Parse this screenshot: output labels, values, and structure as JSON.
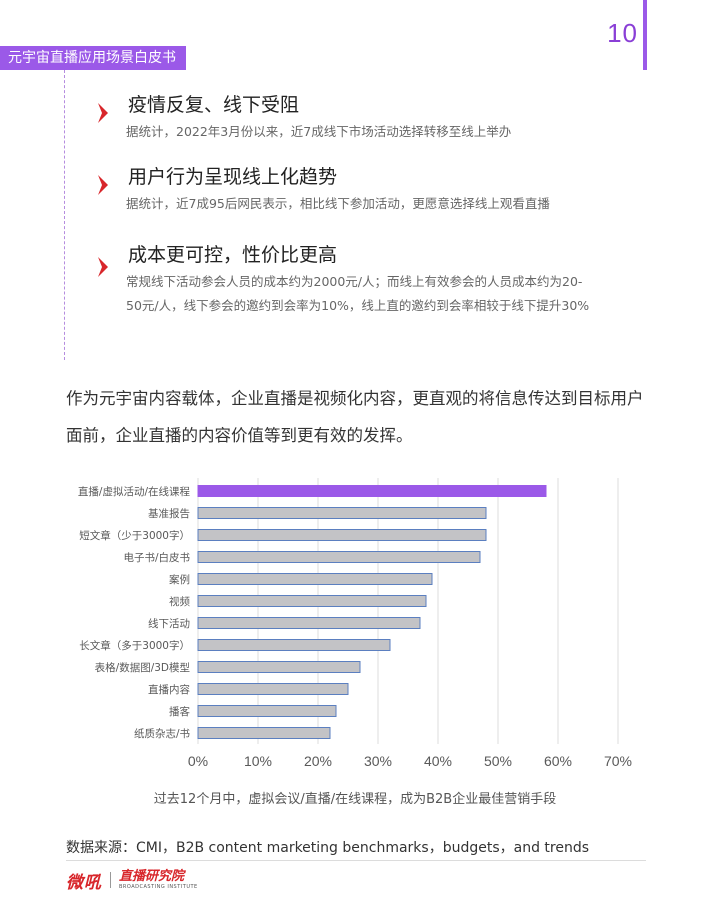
{
  "page_number": "10",
  "doc_title": "元宇宙直播应用场景白皮书",
  "points": [
    {
      "title": "疫情反复、线下受阻",
      "body": "据统计，2022年3月份以来，近7成线下市场活动选择转移至线上举办"
    },
    {
      "title": "用户行为呈现线上化趋势",
      "body": "据统计，近7成95后网民表示，相比线下参加活动，更愿意选择线上观看直播"
    },
    {
      "title": "成本更可控，性价比更高",
      "body": "常规线下活动参会人员的成本约为2000元/人；而线上有效参会的人员成本约为20-50元/人，线下参会的邀约到会率为10%，线上直的邀约到会率相较于线下提升30%"
    }
  ],
  "paragraph": "作为元宇宙内容载体，企业直播是视频化内容，更直观的将信息传达到目标用户面前，企业直播的内容价值等到更有效的发挥。",
  "chart_caption": "过去12个月中，虚拟会议/直播/在线课程，成为B2B企业最佳营销手段",
  "source": "数据来源：CMI，B2B content marketing benchmarks，budgets，and trends",
  "logo": {
    "brand": "微吼",
    "sub": "直播研究院",
    "sub_en": "BROADCASTING INSTITUTE"
  },
  "colors": {
    "accent": "#9b59e8",
    "bar": "#c3c3c6",
    "bar_border": "#5b7fc0",
    "highlight": "#9b59e8",
    "chevron": "#d8262b"
  },
  "chart_data": {
    "type": "bar",
    "orientation": "horizontal",
    "categories": [
      "直播/虚拟活动/在线课程",
      "基准报告",
      "短文章（少于3000字）",
      "电子书/白皮书",
      "案例",
      "视频",
      "线下活动",
      "长文章（多于3000字）",
      "表格/数据图/3D模型",
      "直播内容",
      "播客",
      "纸质杂志/书"
    ],
    "values": [
      58,
      48,
      48,
      47,
      39,
      38,
      37,
      32,
      27,
      25,
      23,
      22
    ],
    "xlim": [
      0,
      70
    ],
    "ticks": [
      "0%",
      "10%",
      "20%",
      "30%",
      "40%",
      "50%",
      "60%",
      "70%"
    ],
    "grid": true,
    "highlight_index": 0,
    "title": "",
    "xlabel": "",
    "ylabel": ""
  }
}
